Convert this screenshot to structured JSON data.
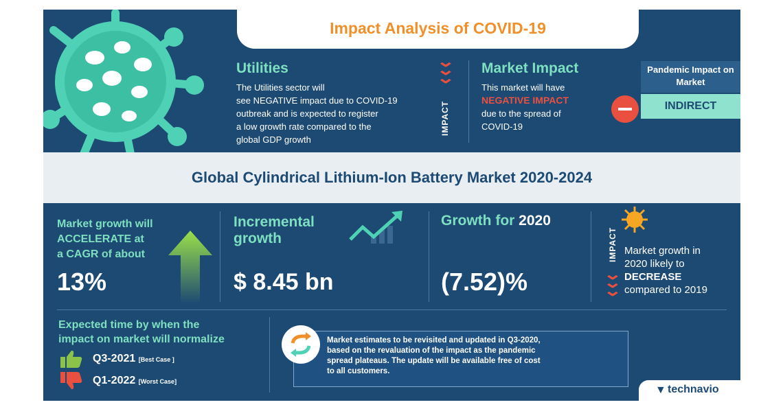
{
  "header": {
    "title": "Impact Analysis of COVID-19"
  },
  "utilities": {
    "heading": "Utilities",
    "text_line1": "The Utilities sector will",
    "text_line2": "see NEGATIVE impact due to COVID-19",
    "text_line3": "outbreak and is expected to register",
    "text_line4": "a low growth rate compared to the",
    "text_line5": "global GDP growth",
    "impact_label": "IMPACT"
  },
  "market_impact": {
    "heading": "Market Impact",
    "text_line1": "This market will have",
    "highlight": "NEGATIVE IMPACT",
    "text_line3": "due to the spread of",
    "text_line4": "COVID-19"
  },
  "pandemic_box": {
    "heading": "Pandemic Impact on Market",
    "value": "INDIRECT"
  },
  "market_title": "Global Cylindrical Lithium-Ion Battery Market 2020-2024",
  "cagr": {
    "line1": "Market growth will",
    "line2": "ACCELERATE at",
    "line3": "a CAGR of about",
    "value": "13%"
  },
  "incremental": {
    "line1": "Incremental",
    "line2": "growth",
    "value": "$ 8.45 bn"
  },
  "growth2020": {
    "label": "Growth for",
    "year": "2020",
    "value": "(7.52)%"
  },
  "impact2020": {
    "impact_label": "IMPACT",
    "line1": "Market growth in",
    "line2": "2020 likely to",
    "highlight": "DECREASE",
    "line4": "compared to 2019"
  },
  "normalize": {
    "heading_line1": "Expected time by when the",
    "heading_line2": "impact on market will normalize",
    "best": {
      "period": "Q3-2021",
      "note": "[Best Case ]"
    },
    "worst": {
      "period": "Q1-2022",
      "note": "[Worst Case]"
    }
  },
  "notice": {
    "line1": "Market estimates to be revisited and updated in Q3-2020,",
    "line2": "based on the revaluation of the impact as the pandemic",
    "line3": "spread plateaus. The update will be available free of cost",
    "line4": "to all customers."
  },
  "brand": {
    "name": "technavio"
  },
  "colors": {
    "navy": "#1d4a73",
    "green": "#7ee0c0",
    "orange": "#f0902a",
    "red": "#e9503f"
  }
}
